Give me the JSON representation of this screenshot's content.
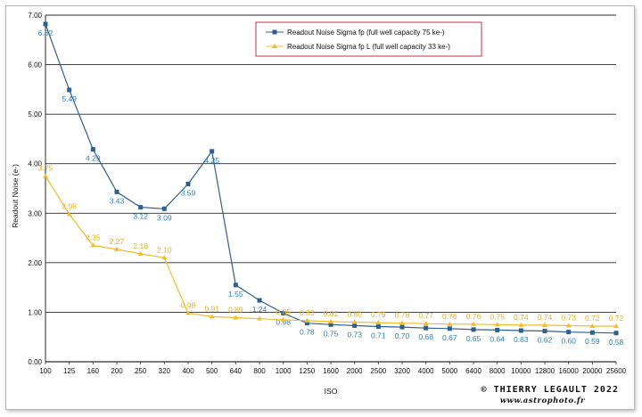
{
  "chart_data": {
    "type": "line",
    "categories": [
      "100",
      "125",
      "160",
      "200",
      "250",
      "320",
      "400",
      "500",
      "640",
      "800",
      "1000",
      "1250",
      "1600",
      "2000",
      "2500",
      "3200",
      "4000",
      "5000",
      "6400",
      "8000",
      "10000",
      "12800",
      "16000",
      "20000",
      "25600"
    ],
    "series": [
      {
        "name": "Readout Noise Sigma fp (full well capacity 75 ke-)",
        "color": "#2f5f8f",
        "label_color": "#2f7fb8",
        "marker": "square",
        "values": [
          6.82,
          5.49,
          4.29,
          3.43,
          3.12,
          3.09,
          3.59,
          4.25,
          1.55,
          1.24,
          0.98,
          0.78,
          0.75,
          0.73,
          0.71,
          0.7,
          0.68,
          0.67,
          0.65,
          0.64,
          0.63,
          0.62,
          0.6,
          0.59,
          0.58
        ],
        "labels": [
          "6.82",
          "5.49",
          "4.29",
          "3.43",
          "3.12",
          "3.09",
          "3.59",
          "4.25",
          "1.55",
          "1.24",
          "0.98",
          "0.78",
          "0.75",
          "0.73",
          "0.71",
          "0.70",
          "0.68",
          "0.67",
          "0.65",
          "0.64",
          "0.63",
          "0.62",
          "0.60",
          "0.59",
          "0.58"
        ]
      },
      {
        "name": "Readout Noise Sigma fp L (full well capacity 33 ke-)",
        "color": "#f0bc2a",
        "label_color": "#e8b020",
        "marker": "triangle",
        "values": [
          3.75,
          2.98,
          2.35,
          2.27,
          2.18,
          2.1,
          0.98,
          0.91,
          0.89,
          0.87,
          0.85,
          0.83,
          0.81,
          0.8,
          0.79,
          0.78,
          0.77,
          0.76,
          0.76,
          0.75,
          0.74,
          0.74,
          0.73,
          0.72,
          0.72
        ],
        "labels": [
          "3.75",
          "2.98",
          "2.35",
          "2.27",
          "2.18",
          "2.10",
          "0.98",
          "0.91",
          "0.89",
          "",
          "0.85",
          "0.83",
          "0.81",
          "0.80",
          "0.79",
          "0.78",
          "0.77",
          "0.76",
          "0.76",
          "0.75",
          "0.74",
          "0.74",
          "0.73",
          "0.72",
          "0.72"
        ]
      }
    ],
    "ylabel": "Readout Noise (e-)",
    "xlabel": "ISO",
    "ylim": [
      0,
      7
    ],
    "yticks": [
      "0.00",
      "1.00",
      "2.00",
      "3.00",
      "4.00",
      "5.00",
      "6.00",
      "7.00"
    ],
    "grid": true,
    "legend_position": "top-right"
  },
  "credit": {
    "line1": "© THIERRY LEGAULT 2022",
    "line2": "www.astrophoto.fr"
  },
  "colors": {
    "grid": "#2a2a2a",
    "legend_border": "#c0304a"
  }
}
